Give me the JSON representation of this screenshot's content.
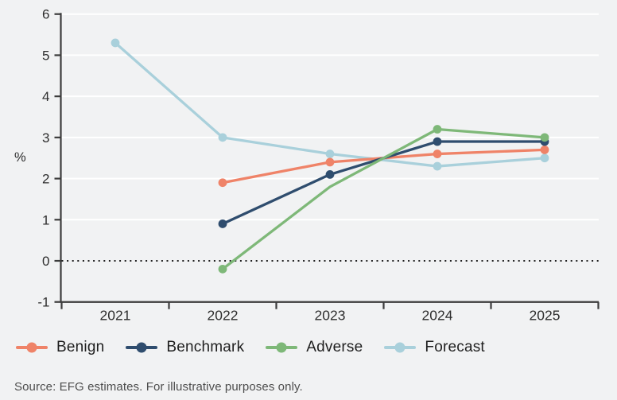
{
  "chart_data": {
    "type": "line",
    "title": "",
    "ylabel": "%",
    "x": [
      2021,
      2022,
      2023,
      2024,
      2025
    ],
    "ylim": [
      -1,
      6
    ],
    "yticks": [
      -1,
      0,
      1,
      2,
      3,
      4,
      5,
      6
    ],
    "grid": "horizontal white gridlines at integers 1-6; dotted dark line at 0",
    "legend_position": "bottom",
    "series": [
      {
        "name": "Benign",
        "color": "#EF8368",
        "values": [
          null,
          1.9,
          2.4,
          2.6,
          2.7
        ]
      },
      {
        "name": "Benchmark",
        "color": "#2F4D6E",
        "values": [
          null,
          0.9,
          2.1,
          2.9,
          2.9
        ]
      },
      {
        "name": "Adverse",
        "color": "#7EB878",
        "values": [
          null,
          -0.2,
          1.8,
          3.2,
          3.0
        ],
        "no_marker_indices": [
          2
        ]
      },
      {
        "name": "Forecast",
        "color": "#A9D0DB",
        "values": [
          5.3,
          3.0,
          2.6,
          2.3,
          2.5
        ]
      }
    ],
    "draw_order": [
      3,
      0,
      1,
      2
    ]
  },
  "source_note": "Source: EFG estimates. For illustrative purposes only.",
  "colors": {
    "background": "#F1F2F3",
    "gridline": "#FFFFFF",
    "axis": "#3C3C3C",
    "zero_line": "#1E1E1E",
    "tick_text": "#2E2E2E",
    "source_text": "#4D4D4D"
  }
}
